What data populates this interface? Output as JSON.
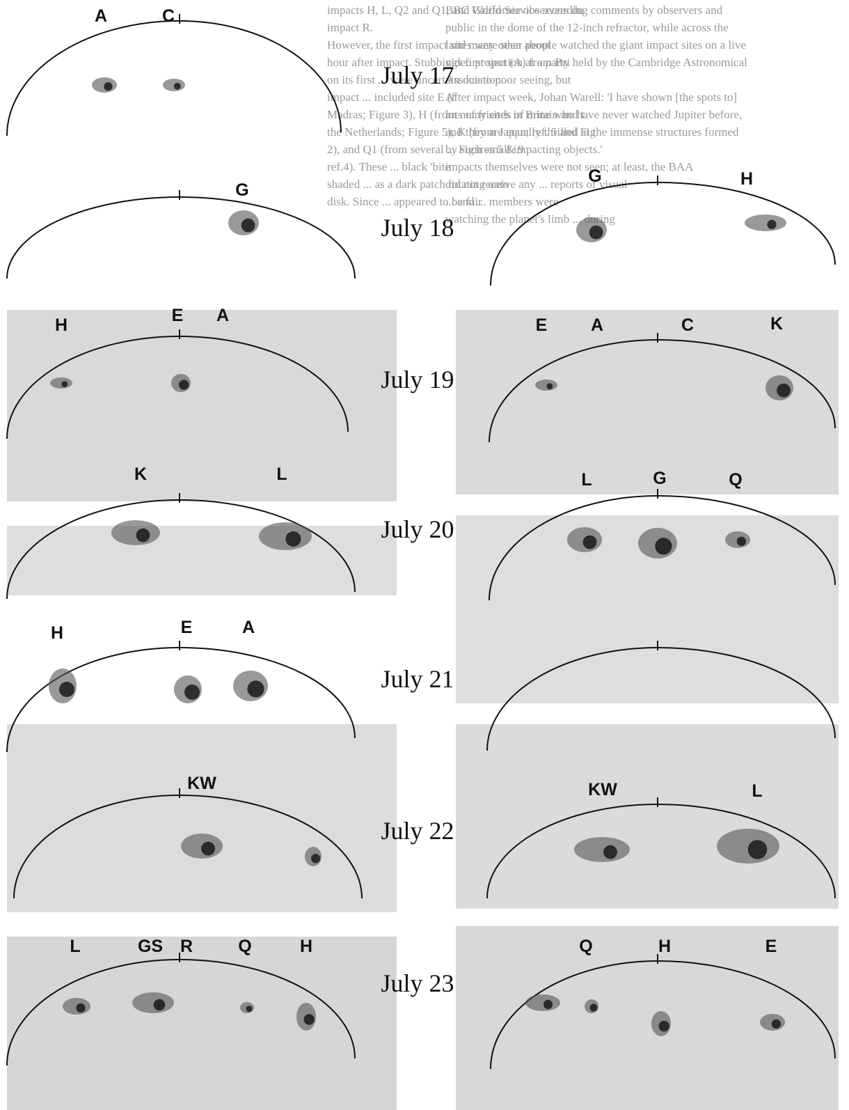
{
  "background_text": {
    "middle": [
      "impacts H, L, Q2 and Q1, and California observers du",
      "impact R.",
      "However, the first impact sites were seen about",
      "hour after impact. Stubbings first spot (A) from Bri",
      "on its first ... were uncertain due to poor seeing, but",
      "impact ... included site E (f",
      "Madras; Figure 3), H (from many sites in Britain and t",
      "the Netherlands; Figure 5), K (from Japan; ref. 5 and Fig",
      "2), and Q1 (from several ... Figures 5 & 9",
      "ref.4). These ... black 'bite",
      "shaded ... as a dark patch rotating onto",
      "disk. Since ... appeared to be fair"
    ],
    "right": [
      "BBC World Service recording comments by observers and",
      "public in the dome of the 12-inch refractor, while across the",
      "land many other people watched the giant impact sites on a live",
      "video projection at a party held by the Cambridge Astronomical",
      "Association.",
      "After impact week, Johan Warell: 'I have shown [the spots to]",
      "lots of friends of mine who have never watched Jupiter before,",
      "and they are equally thrilled at the immense structures formed",
      "by such small impacting objects.'",
      "impacts themselves were not seen; at least, the BAA",
      "did not receive any ... reports of visual",
      "... and ... members were",
      "watching the planet's limb ... during"
    ]
  },
  "rows": [
    {
      "date": "July 17",
      "left": [
        "A",
        "C"
      ],
      "right": []
    },
    {
      "date": "July 18",
      "left": [
        "G"
      ],
      "right": [
        "G",
        "H"
      ]
    },
    {
      "date": "July 19",
      "left": [
        "H",
        "E",
        "A"
      ],
      "right": [
        "E",
        "A",
        "C",
        "K"
      ]
    },
    {
      "date": "July 20",
      "left": [
        "K",
        "L"
      ],
      "right": [
        "L",
        "G",
        "Q"
      ]
    },
    {
      "date": "July 21",
      "left": [
        "H",
        "E",
        "A"
      ],
      "right": []
    },
    {
      "date": "July 22",
      "left": [
        "KW"
      ],
      "right": [
        "KW",
        "L"
      ]
    },
    {
      "date": "July 23",
      "left": [
        "L",
        "GS",
        "R",
        "Q",
        "H"
      ],
      "right": [
        "Q",
        "H",
        "E"
      ]
    }
  ]
}
